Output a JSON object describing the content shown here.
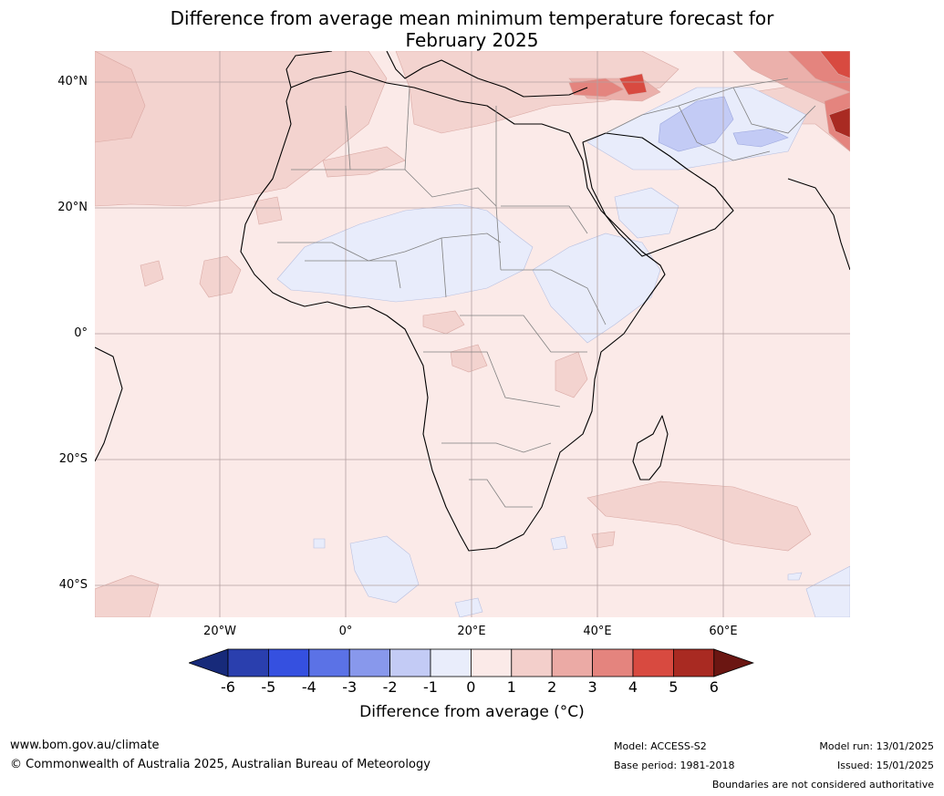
{
  "title_line1": "Difference from average mean minimum temperature forecast for",
  "title_line2": "February 2025",
  "lat_labels": [
    "40°N",
    "20°N",
    "0°",
    "20°S",
    "40°S"
  ],
  "lon_labels": [
    "20°W",
    "0°",
    "20°E",
    "40°E",
    "60°E"
  ],
  "colorbar": {
    "ticks": [
      "-6",
      "-5",
      "-4",
      "-3",
      "-2",
      "-1",
      "0",
      "1",
      "2",
      "3",
      "4",
      "5",
      "6"
    ],
    "colors": [
      "#172a7a",
      "#2a3fae",
      "#3550e0",
      "#5b72e6",
      "#8898ec",
      "#c3cbf5",
      "#e9edfb",
      "#fbeae8",
      "#f3cfcb",
      "#ebaaa5",
      "#e4847e",
      "#d84a40",
      "#a92a22",
      "#6b1612"
    ],
    "label": "Difference from average (°C)"
  },
  "footer": {
    "website": "www.bom.gov.au/climate",
    "copyright": "© Commonwealth of Australia 2025, Australian Bureau of Meteorology",
    "model": "Model: ACCESS-S2",
    "base_period": "Base period: 1981-2018",
    "model_run": "Model run: 13/01/2025",
    "issued": "Issued: 15/01/2025",
    "disclaimer": "Boundaries are not considered authoritative"
  }
}
